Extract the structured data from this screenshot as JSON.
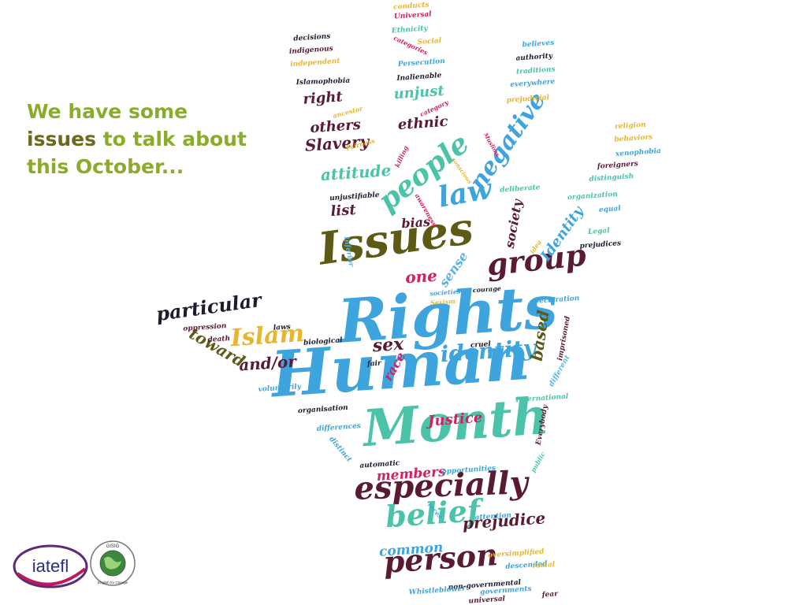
{
  "headline": {
    "line1": "We have some",
    "line2_highlight": "issues",
    "line2_rest": "to talk about",
    "line3": "this October..."
  },
  "logos": {
    "iatefl_text": "iatefl",
    "gisig_text": "GISIG",
    "gisig_tagline": "English for Change"
  },
  "palette": {
    "blue": "#3ea4dd",
    "teal": "#4bc3a8",
    "maroon": "#5a1a33",
    "olive": "#5c5a14",
    "gold": "#e8b52f",
    "magenta": "#d61f63",
    "navy": "#1c1c2e",
    "sky": "#56b4e6"
  },
  "cloud": [
    {
      "text": "Rights",
      "color": "blue"
    },
    {
      "text": "Human",
      "color": "blue"
    },
    {
      "text": "Month",
      "color": "teal"
    },
    {
      "text": "Issues",
      "color": "olive"
    },
    {
      "text": "especially",
      "color": "maroon"
    },
    {
      "text": "person",
      "color": "maroon"
    },
    {
      "text": "belief",
      "color": "teal"
    },
    {
      "text": "people",
      "color": "teal"
    },
    {
      "text": "negative",
      "color": "blue"
    },
    {
      "text": "law",
      "color": "blue"
    },
    {
      "text": "group",
      "color": "maroon"
    },
    {
      "text": "identity",
      "color": "blue"
    },
    {
      "text": "Islam",
      "color": "gold"
    },
    {
      "text": "particular",
      "color": "navy"
    },
    {
      "text": "toward",
      "color": "olive"
    },
    {
      "text": "and/or",
      "color": "maroon"
    },
    {
      "text": "sex",
      "color": "maroon"
    },
    {
      "text": "race",
      "color": "magenta"
    },
    {
      "text": "based",
      "color": "olive"
    },
    {
      "text": "Justice",
      "color": "magenta"
    },
    {
      "text": "members",
      "color": "magenta"
    },
    {
      "text": "prejudice",
      "color": "maroon"
    },
    {
      "text": "common",
      "color": "blue"
    },
    {
      "text": "one",
      "color": "magenta"
    },
    {
      "text": "sense",
      "color": "sky"
    },
    {
      "text": "Identity",
      "color": "blue"
    },
    {
      "text": "society",
      "color": "maroon"
    },
    {
      "text": "bias",
      "color": "maroon"
    },
    {
      "text": "list",
      "color": "maroon"
    },
    {
      "text": "attitude",
      "color": "teal"
    },
    {
      "text": "Slavery",
      "color": "maroon"
    },
    {
      "text": "others",
      "color": "maroon"
    },
    {
      "text": "right",
      "color": "maroon"
    },
    {
      "text": "unjust",
      "color": "teal"
    },
    {
      "text": "ethnic",
      "color": "maroon"
    },
    {
      "text": "Islamophobia",
      "color": "navy"
    },
    {
      "text": "ancestor",
      "color": "gold"
    },
    {
      "text": "Fairness",
      "color": "gold"
    },
    {
      "text": "killing",
      "color": "magenta"
    },
    {
      "text": "conscious",
      "color": "gold"
    },
    {
      "text": "Muslims",
      "color": "magenta"
    },
    {
      "text": "category",
      "color": "magenta"
    },
    {
      "text": "decisions",
      "color": "navy"
    },
    {
      "text": "indigenous",
      "color": "maroon"
    },
    {
      "text": "independent",
      "color": "gold"
    },
    {
      "text": "conducts",
      "color": "gold"
    },
    {
      "text": "Universal",
      "color": "magenta"
    },
    {
      "text": "Ethnicity",
      "color": "teal"
    },
    {
      "text": "Social",
      "color": "gold"
    },
    {
      "text": "categories",
      "color": "magenta"
    },
    {
      "text": "Persecution",
      "color": "blue"
    },
    {
      "text": "Inalienable",
      "color": "navy"
    },
    {
      "text": "believes",
      "color": "blue"
    },
    {
      "text": "authority",
      "color": "navy"
    },
    {
      "text": "traditions",
      "color": "teal"
    },
    {
      "text": "everywhere",
      "color": "blue"
    },
    {
      "text": "prejudicial",
      "color": "gold"
    },
    {
      "text": "religion",
      "color": "gold"
    },
    {
      "text": "behaviors",
      "color": "gold"
    },
    {
      "text": "xenophobia",
      "color": "blue"
    },
    {
      "text": "foreigners",
      "color": "maroon"
    },
    {
      "text": "distinguish",
      "color": "teal"
    },
    {
      "text": "deliberate",
      "color": "teal"
    },
    {
      "text": "organization",
      "color": "teal"
    },
    {
      "text": "equal",
      "color": "blue"
    },
    {
      "text": "Legal",
      "color": "teal"
    },
    {
      "text": "prejudices",
      "color": "navy"
    },
    {
      "text": "idea",
      "color": "gold"
    },
    {
      "text": "awareness",
      "color": "magenta"
    },
    {
      "text": "unjustifiable",
      "color": "navy"
    },
    {
      "text": "inferior",
      "color": "sky"
    },
    {
      "text": "courage",
      "color": "navy"
    },
    {
      "text": "societies",
      "color": "blue"
    },
    {
      "text": "Sexism",
      "color": "gold"
    },
    {
      "text": "Declaration",
      "color": "blue"
    },
    {
      "text": "imprisoned",
      "color": "maroon"
    },
    {
      "text": "oppression",
      "color": "maroon"
    },
    {
      "text": "death",
      "color": "maroon"
    },
    {
      "text": "laws",
      "color": "navy"
    },
    {
      "text": "biological",
      "color": "navy"
    },
    {
      "text": "cruel",
      "color": "navy"
    },
    {
      "text": "fair",
      "color": "navy"
    },
    {
      "text": "different",
      "color": "sky"
    },
    {
      "text": "voluntarily",
      "color": "blue"
    },
    {
      "text": "International",
      "color": "teal"
    },
    {
      "text": "organisation",
      "color": "navy"
    },
    {
      "text": "differences",
      "color": "blue"
    },
    {
      "text": "distinct",
      "color": "blue"
    },
    {
      "text": "Everybody",
      "color": "maroon"
    },
    {
      "text": "public",
      "color": "teal"
    },
    {
      "text": "automatic",
      "color": "navy"
    },
    {
      "text": "opportunities",
      "color": "blue"
    },
    {
      "text": "races",
      "color": "blue"
    },
    {
      "text": "attention",
      "color": "blue"
    },
    {
      "text": "oversimplified",
      "color": "gold"
    },
    {
      "text": "descended",
      "color": "blue"
    },
    {
      "text": "racial",
      "color": "gold"
    },
    {
      "text": "non-governmental",
      "color": "navy"
    },
    {
      "text": "Whistleblower",
      "color": "blue"
    },
    {
      "text": "governments",
      "color": "blue"
    },
    {
      "text": "universal",
      "color": "maroon"
    },
    {
      "text": "fear",
      "color": "maroon"
    }
  ]
}
